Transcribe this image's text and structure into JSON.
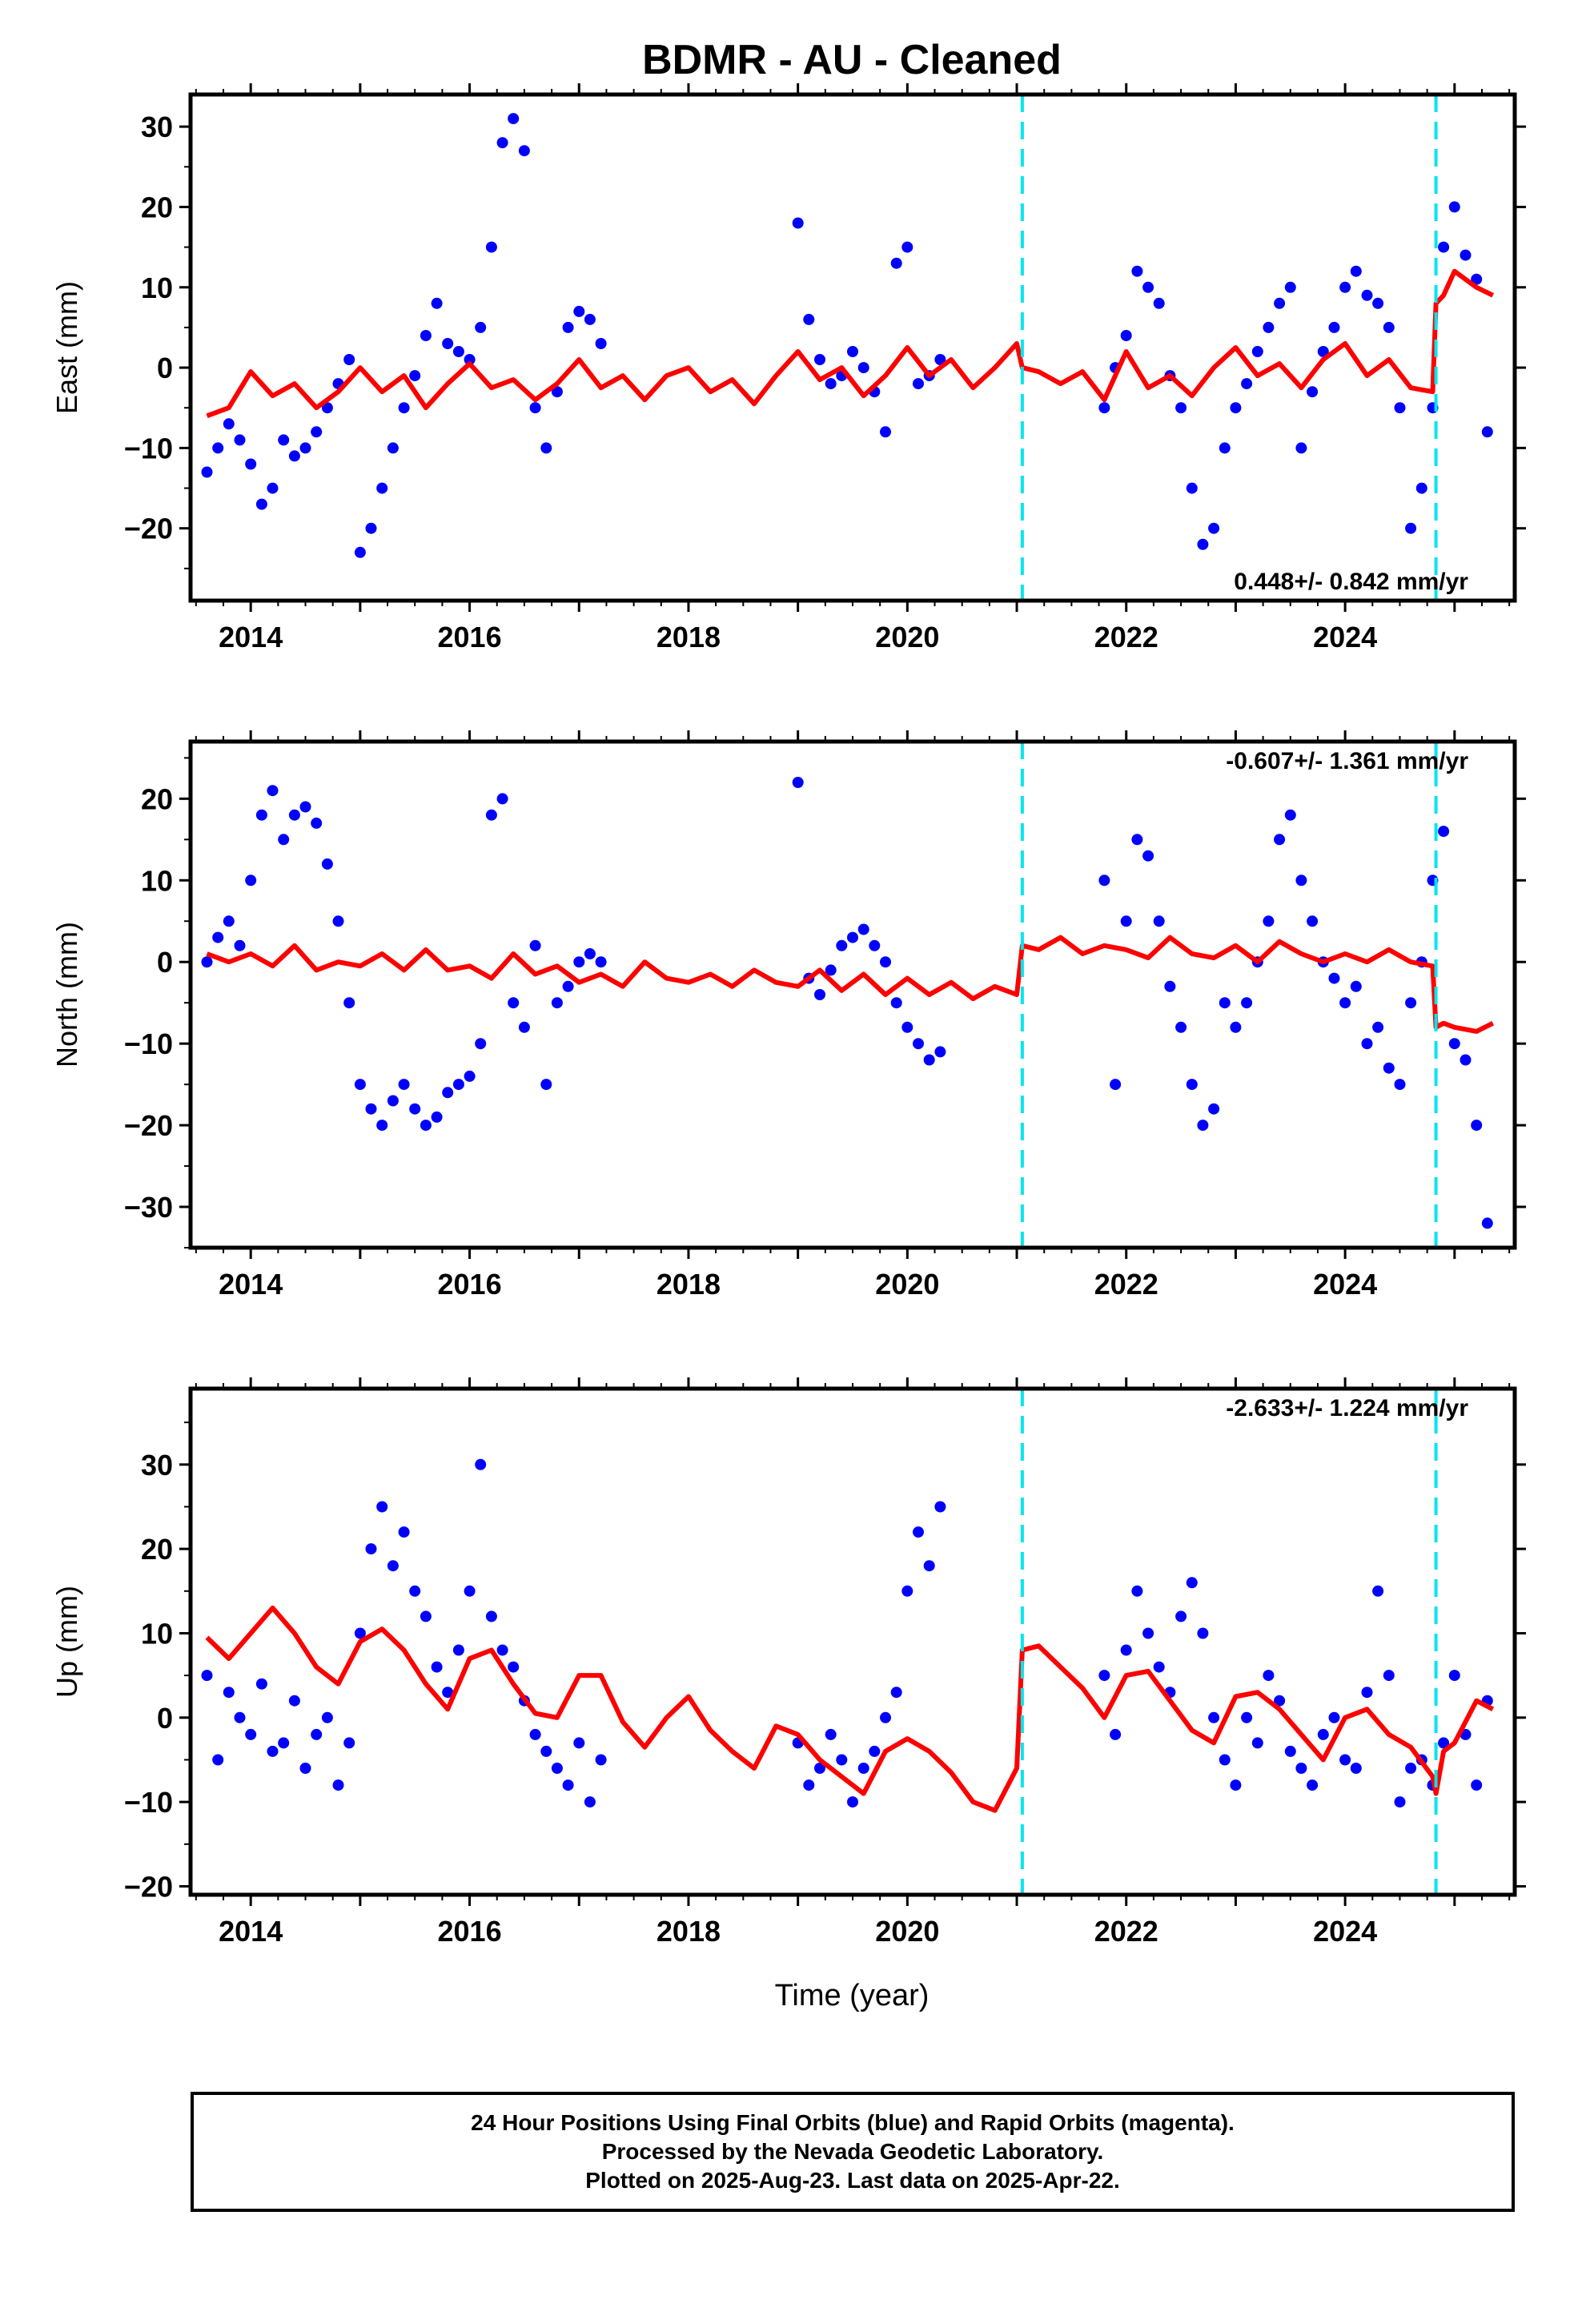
{
  "title": "BDMR  - AU - Cleaned",
  "xlabel": "Time (year)",
  "footer": {
    "line1": "24 Hour Positions Using Final Orbits (blue) and Rapid Orbits (magenta).",
    "line2": "Processed by the Nevada Geodetic Laboratory.",
    "line3": "Plotted on 2025-Aug-23. Last data on 2025-Apr-22."
  },
  "colors": {
    "data": "#0000ff",
    "model": "#ff0000",
    "offset": "#00e5ee",
    "frame": "#000000"
  },
  "chart_data": [
    {
      "type": "scatter",
      "ylabel": "East (mm)",
      "xlim": [
        2013.45,
        2025.55
      ],
      "ylim": [
        -29,
        34
      ],
      "yticks": [
        -20,
        -10,
        0,
        10,
        20,
        30
      ],
      "xticks": [
        2014,
        2016,
        2018,
        2020,
        2022,
        2024
      ],
      "rate": "0.448+/- 0.842 mm/yr",
      "rate_position": "bottom-right",
      "offsets": [
        2021.05,
        2024.83
      ],
      "series": [
        {
          "kind": "points",
          "x": [
            2013.6,
            2013.7,
            2013.8,
            2013.9,
            2014.0,
            2014.1,
            2014.2,
            2014.3,
            2014.4,
            2014.5,
            2014.6,
            2014.7,
            2014.8,
            2014.9,
            2015.0,
            2015.1,
            2015.2,
            2015.3,
            2015.4,
            2015.5,
            2015.6,
            2015.7,
            2015.8,
            2015.9,
            2016.0,
            2016.1,
            2016.2,
            2016.3,
            2016.4,
            2016.5,
            2016.6,
            2016.7,
            2016.8,
            2016.9,
            2017.0,
            2017.1,
            2017.2,
            2019.0,
            2019.1,
            2019.2,
            2019.3,
            2019.4,
            2019.5,
            2019.6,
            2019.7,
            2019.8,
            2019.9,
            2020.0,
            2020.1,
            2020.2,
            2020.3,
            2021.8,
            2021.9,
            2022.0,
            2022.1,
            2022.2,
            2022.3,
            2022.4,
            2022.5,
            2022.6,
            2022.7,
            2022.8,
            2022.9,
            2023.0,
            2023.1,
            2023.2,
            2023.3,
            2023.4,
            2023.5,
            2023.6,
            2023.7,
            2023.8,
            2023.9,
            2024.0,
            2024.1,
            2024.2,
            2024.3,
            2024.4,
            2024.5,
            2024.6,
            2024.7,
            2024.8,
            2024.9,
            2025.0,
            2025.1,
            2025.2,
            2025.3
          ],
          "y": [
            -13,
            -10,
            -7,
            -9,
            -12,
            -17,
            -15,
            -9,
            -11,
            -10,
            -8,
            -5,
            -2,
            1,
            -23,
            -20,
            -15,
            -10,
            -5,
            -1,
            4,
            8,
            3,
            2,
            1,
            5,
            15,
            28,
            31,
            27,
            -5,
            -10,
            -3,
            5,
            7,
            6,
            3,
            18,
            6,
            1,
            -2,
            -1,
            2,
            0,
            -3,
            -8,
            13,
            15,
            -2,
            -1,
            1,
            -5,
            0,
            4,
            12,
            10,
            8,
            -1,
            -5,
            -15,
            -22,
            -20,
            -10,
            -5,
            -2,
            2,
            5,
            8,
            10,
            -10,
            -3,
            2,
            5,
            10,
            12,
            9,
            8,
            5,
            -5,
            -20,
            -15,
            -5,
            15,
            20,
            14,
            11,
            -8
          ]
        },
        {
          "kind": "model",
          "x": [
            2013.6,
            2013.8,
            2014.0,
            2014.2,
            2014.4,
            2014.6,
            2014.8,
            2015.0,
            2015.2,
            2015.4,
            2015.6,
            2015.8,
            2016.0,
            2016.2,
            2016.4,
            2016.6,
            2016.8,
            2017.0,
            2017.2,
            2017.4,
            2017.6,
            2017.8,
            2018.0,
            2018.2,
            2018.4,
            2018.6,
            2018.8,
            2019.0,
            2019.2,
            2019.4,
            2019.6,
            2019.8,
            2020.0,
            2020.2,
            2020.4,
            2020.6,
            2020.8,
            2021.0,
            2021.05,
            2021.2,
            2021.4,
            2021.6,
            2021.8,
            2022.0,
            2022.2,
            2022.4,
            2022.6,
            2022.8,
            2023.0,
            2023.2,
            2023.4,
            2023.6,
            2023.8,
            2024.0,
            2024.2,
            2024.4,
            2024.6,
            2024.8,
            2024.83,
            2024.9,
            2025.0,
            2025.2,
            2025.35
          ],
          "y": [
            -6,
            -5,
            -0.5,
            -3.5,
            -2,
            -5,
            -3,
            0,
            -3,
            -1,
            -5,
            -2,
            0.5,
            -2.5,
            -1.5,
            -4,
            -2,
            1,
            -2.5,
            -1,
            -4,
            -1,
            0,
            -3,
            -1.5,
            -4.5,
            -1,
            2,
            -1.5,
            0,
            -3.5,
            -1,
            2.5,
            -1,
            1,
            -2.5,
            0,
            3,
            0,
            -0.5,
            -2,
            -0.5,
            -4,
            2,
            -2.5,
            -1,
            -3.5,
            0,
            2.5,
            -1,
            0.5,
            -2.5,
            1,
            3,
            -1,
            1,
            -2.5,
            -3,
            8,
            9,
            12,
            10,
            9
          ]
        }
      ]
    },
    {
      "type": "scatter",
      "ylabel": "North (mm)",
      "xlim": [
        2013.45,
        2025.55
      ],
      "ylim": [
        -35,
        27
      ],
      "yticks": [
        -30,
        -20,
        -10,
        0,
        10,
        20
      ],
      "xticks": [
        2014,
        2016,
        2018,
        2020,
        2022,
        2024
      ],
      "rate": "-0.607+/- 1.361 mm/yr",
      "rate_position": "top-right",
      "offsets": [
        2021.05,
        2024.83
      ],
      "series": [
        {
          "kind": "points",
          "x": [
            2013.6,
            2013.7,
            2013.8,
            2013.9,
            2014.0,
            2014.1,
            2014.2,
            2014.3,
            2014.4,
            2014.5,
            2014.6,
            2014.7,
            2014.8,
            2014.9,
            2015.0,
            2015.1,
            2015.2,
            2015.3,
            2015.4,
            2015.5,
            2015.6,
            2015.7,
            2015.8,
            2015.9,
            2016.0,
            2016.1,
            2016.2,
            2016.3,
            2016.4,
            2016.5,
            2016.6,
            2016.7,
            2016.8,
            2016.9,
            2017.0,
            2017.1,
            2017.2,
            2019.0,
            2019.1,
            2019.2,
            2019.3,
            2019.4,
            2019.5,
            2019.6,
            2019.7,
            2019.8,
            2019.9,
            2020.0,
            2020.1,
            2020.2,
            2020.3,
            2021.8,
            2021.9,
            2022.0,
            2022.1,
            2022.2,
            2022.3,
            2022.4,
            2022.5,
            2022.6,
            2022.7,
            2022.8,
            2022.9,
            2023.0,
            2023.1,
            2023.2,
            2023.3,
            2023.4,
            2023.5,
            2023.6,
            2023.7,
            2023.8,
            2023.9,
            2024.0,
            2024.1,
            2024.2,
            2024.3,
            2024.4,
            2024.5,
            2024.6,
            2024.7,
            2024.8,
            2024.9,
            2025.0,
            2025.1,
            2025.2,
            2025.3
          ],
          "y": [
            0,
            3,
            5,
            2,
            10,
            18,
            21,
            15,
            18,
            19,
            17,
            12,
            5,
            -5,
            -15,
            -18,
            -20,
            -17,
            -15,
            -18,
            -20,
            -19,
            -16,
            -15,
            -14,
            -10,
            18,
            20,
            -5,
            -8,
            2,
            -15,
            -5,
            -3,
            0,
            1,
            0,
            22,
            -2,
            -4,
            -1,
            2,
            3,
            4,
            2,
            0,
            -5,
            -8,
            -10,
            -12,
            -11,
            10,
            -15,
            5,
            15,
            13,
            5,
            -3,
            -8,
            -15,
            -20,
            -18,
            -5,
            -8,
            -5,
            0,
            5,
            15,
            18,
            10,
            5,
            0,
            -2,
            -5,
            -3,
            -10,
            -8,
            -13,
            -15,
            -5,
            0,
            10,
            16,
            -10,
            -12,
            -20,
            -32
          ]
        },
        {
          "kind": "model",
          "x": [
            2013.6,
            2013.8,
            2014.0,
            2014.2,
            2014.4,
            2014.6,
            2014.8,
            2015.0,
            2015.2,
            2015.4,
            2015.6,
            2015.8,
            2016.0,
            2016.2,
            2016.4,
            2016.6,
            2016.8,
            2017.0,
            2017.2,
            2017.4,
            2017.6,
            2017.8,
            2018.0,
            2018.2,
            2018.4,
            2018.6,
            2018.8,
            2019.0,
            2019.2,
            2019.4,
            2019.6,
            2019.8,
            2020.0,
            2020.2,
            2020.4,
            2020.6,
            2020.8,
            2021.0,
            2021.05,
            2021.2,
            2021.4,
            2021.6,
            2021.8,
            2022.0,
            2022.2,
            2022.4,
            2022.6,
            2022.8,
            2023.0,
            2023.2,
            2023.4,
            2023.6,
            2023.8,
            2024.0,
            2024.2,
            2024.4,
            2024.6,
            2024.8,
            2024.83,
            2024.9,
            2025.0,
            2025.2,
            2025.35
          ],
          "y": [
            1,
            0,
            1,
            -0.5,
            2,
            -1,
            0,
            -0.5,
            1,
            -1,
            1.5,
            -1,
            -0.5,
            -2,
            1,
            -1.5,
            -0.5,
            -2.5,
            -1.5,
            -3,
            0,
            -2,
            -2.5,
            -1.5,
            -3,
            -1,
            -2.5,
            -3,
            -1,
            -3.5,
            -1.5,
            -4,
            -2,
            -4,
            -2.5,
            -4.5,
            -3,
            -4,
            2,
            1.5,
            3,
            1,
            2,
            1.5,
            0.5,
            3,
            1,
            0.5,
            2,
            0,
            2.5,
            1,
            0,
            1,
            0,
            1.5,
            0,
            -0.5,
            -8,
            -7.5,
            -8,
            -8.5,
            -7.5
          ]
        }
      ]
    },
    {
      "type": "scatter",
      "ylabel": "Up (mm)",
      "xlabel": "Time (year)",
      "xlim": [
        2013.45,
        2025.55
      ],
      "ylim": [
        -21,
        39
      ],
      "yticks": [
        -20,
        -10,
        0,
        10,
        20,
        30
      ],
      "xticks": [
        2014,
        2016,
        2018,
        2020,
        2022,
        2024
      ],
      "rate": "-2.633+/- 1.224 mm/yr",
      "rate_position": "top-right",
      "offsets": [
        2021.05,
        2024.83
      ],
      "series": [
        {
          "kind": "points",
          "x": [
            2013.6,
            2013.7,
            2013.8,
            2013.9,
            2014.0,
            2014.1,
            2014.2,
            2014.3,
            2014.4,
            2014.5,
            2014.6,
            2014.7,
            2014.8,
            2014.9,
            2015.0,
            2015.1,
            2015.2,
            2015.3,
            2015.4,
            2015.5,
            2015.6,
            2015.7,
            2015.8,
            2015.9,
            2016.0,
            2016.1,
            2016.2,
            2016.3,
            2016.4,
            2016.5,
            2016.6,
            2016.7,
            2016.8,
            2016.9,
            2017.0,
            2017.1,
            2017.2,
            2019.0,
            2019.1,
            2019.2,
            2019.3,
            2019.4,
            2019.5,
            2019.6,
            2019.7,
            2019.8,
            2019.9,
            2020.0,
            2020.1,
            2020.2,
            2020.3,
            2021.8,
            2021.9,
            2022.0,
            2022.1,
            2022.2,
            2022.3,
            2022.4,
            2022.5,
            2022.6,
            2022.7,
            2022.8,
            2022.9,
            2023.0,
            2023.1,
            2023.2,
            2023.3,
            2023.4,
            2023.5,
            2023.6,
            2023.7,
            2023.8,
            2023.9,
            2024.0,
            2024.1,
            2024.2,
            2024.3,
            2024.4,
            2024.5,
            2024.6,
            2024.7,
            2024.8,
            2024.9,
            2025.0,
            2025.1,
            2025.2,
            2025.3
          ],
          "y": [
            5,
            -5,
            3,
            0,
            -2,
            4,
            -4,
            -3,
            2,
            -6,
            -2,
            0,
            -8,
            -3,
            10,
            20,
            25,
            18,
            22,
            15,
            12,
            6,
            3,
            8,
            15,
            30,
            12,
            8,
            6,
            2,
            -2,
            -4,
            -6,
            -8,
            -3,
            -10,
            -5,
            -3,
            -8,
            -6,
            -2,
            -5,
            -10,
            -6,
            -4,
            0,
            3,
            15,
            22,
            18,
            25,
            5,
            -2,
            8,
            15,
            10,
            6,
            3,
            12,
            16,
            10,
            0,
            -5,
            -8,
            0,
            -3,
            5,
            2,
            -4,
            -6,
            -8,
            -2,
            0,
            -5,
            -6,
            3,
            15,
            5,
            -10,
            -6,
            -5,
            -8,
            -3,
            5,
            -2,
            -8,
            2
          ]
        },
        {
          "kind": "model",
          "x": [
            2013.6,
            2013.8,
            2014.0,
            2014.2,
            2014.4,
            2014.6,
            2014.8,
            2015.0,
            2015.2,
            2015.4,
            2015.6,
            2015.8,
            2016.0,
            2016.2,
            2016.4,
            2016.6,
            2016.8,
            2017.0,
            2017.2,
            2017.4,
            2017.6,
            2017.8,
            2018.0,
            2018.2,
            2018.4,
            2018.6,
            2018.8,
            2019.0,
            2019.2,
            2019.4,
            2019.6,
            2019.8,
            2020.0,
            2020.2,
            2020.4,
            2020.6,
            2020.8,
            2021.0,
            2021.05,
            2021.2,
            2021.4,
            2021.6,
            2021.8,
            2022.0,
            2022.2,
            2022.4,
            2022.6,
            2022.8,
            2023.0,
            2023.2,
            2023.4,
            2023.6,
            2023.8,
            2024.0,
            2024.2,
            2024.4,
            2024.6,
            2024.8,
            2024.83,
            2024.9,
            2025.0,
            2025.2,
            2025.35
          ],
          "y": [
            9.5,
            7,
            10,
            13,
            10,
            6,
            4,
            9,
            10.5,
            8,
            4,
            1,
            7,
            8,
            4,
            0.5,
            0,
            5,
            5,
            -0.5,
            -3.5,
            0,
            2.5,
            -1.5,
            -4,
            -6,
            -1,
            -2,
            -5,
            -7,
            -9,
            -4,
            -2.5,
            -4,
            -6.5,
            -10,
            -11,
            -6,
            8,
            8.5,
            6,
            3.5,
            0,
            5,
            5.5,
            2,
            -1.5,
            -3,
            2.5,
            3,
            1,
            -2,
            -5,
            0,
            1,
            -2,
            -3.5,
            -7,
            -9,
            -4,
            -3,
            2,
            1
          ]
        }
      ]
    }
  ]
}
